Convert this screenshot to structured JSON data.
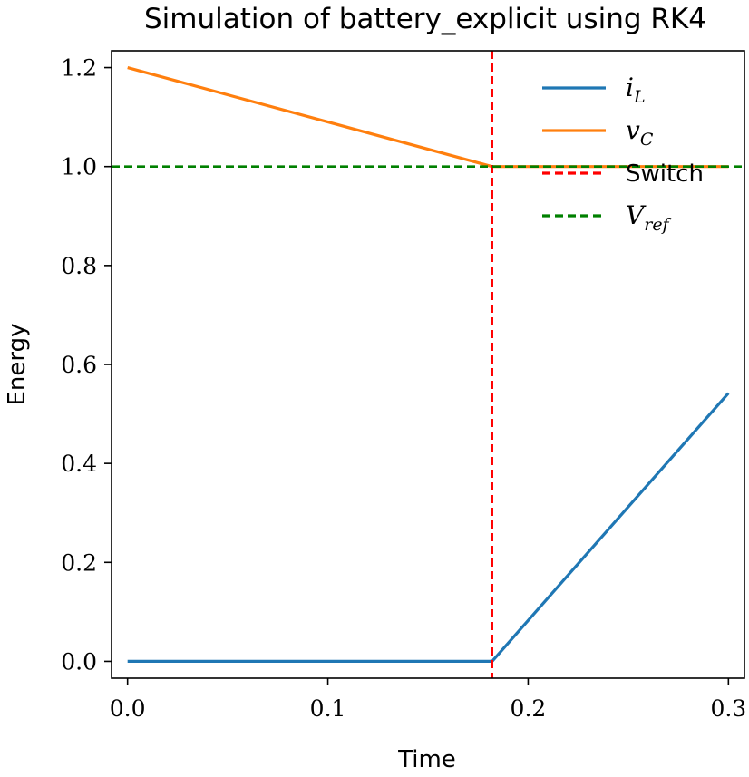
{
  "chart_data": {
    "type": "line",
    "title": "Simulation of battery_explicit using RK4",
    "xlabel": "Time",
    "ylabel": "Energy",
    "xlim": [
      -0.008,
      0.308
    ],
    "ylim": [
      -0.034,
      1.234
    ],
    "xticks": [
      "0.0",
      "0.1",
      "0.2",
      "0.3"
    ],
    "yticks": [
      "0.0",
      "0.2",
      "0.4",
      "0.6",
      "0.8",
      "1.0",
      "1.2"
    ],
    "grid": false,
    "legend_position": "top-right",
    "series": [
      {
        "name_main": "i",
        "name_sub": "L",
        "color": "#1f77b4",
        "style": "solid",
        "x": [
          0.0,
          0.182,
          0.3
        ],
        "y": [
          0.0,
          0.0,
          0.542
        ]
      },
      {
        "name_main": "v",
        "name_sub": "C",
        "color": "#ff7f0e",
        "style": "solid",
        "x": [
          0.0,
          0.182,
          0.3
        ],
        "y": [
          1.2,
          1.0,
          1.0
        ]
      }
    ],
    "reference_lines": [
      {
        "name": "Switch",
        "orientation": "vertical",
        "value": 0.182,
        "color": "#ff0000",
        "style": "dashed"
      },
      {
        "name_main": "V",
        "name_sub": "ref",
        "orientation": "horizontal",
        "value": 1.0,
        "color": "#008000",
        "style": "dashed"
      }
    ]
  }
}
